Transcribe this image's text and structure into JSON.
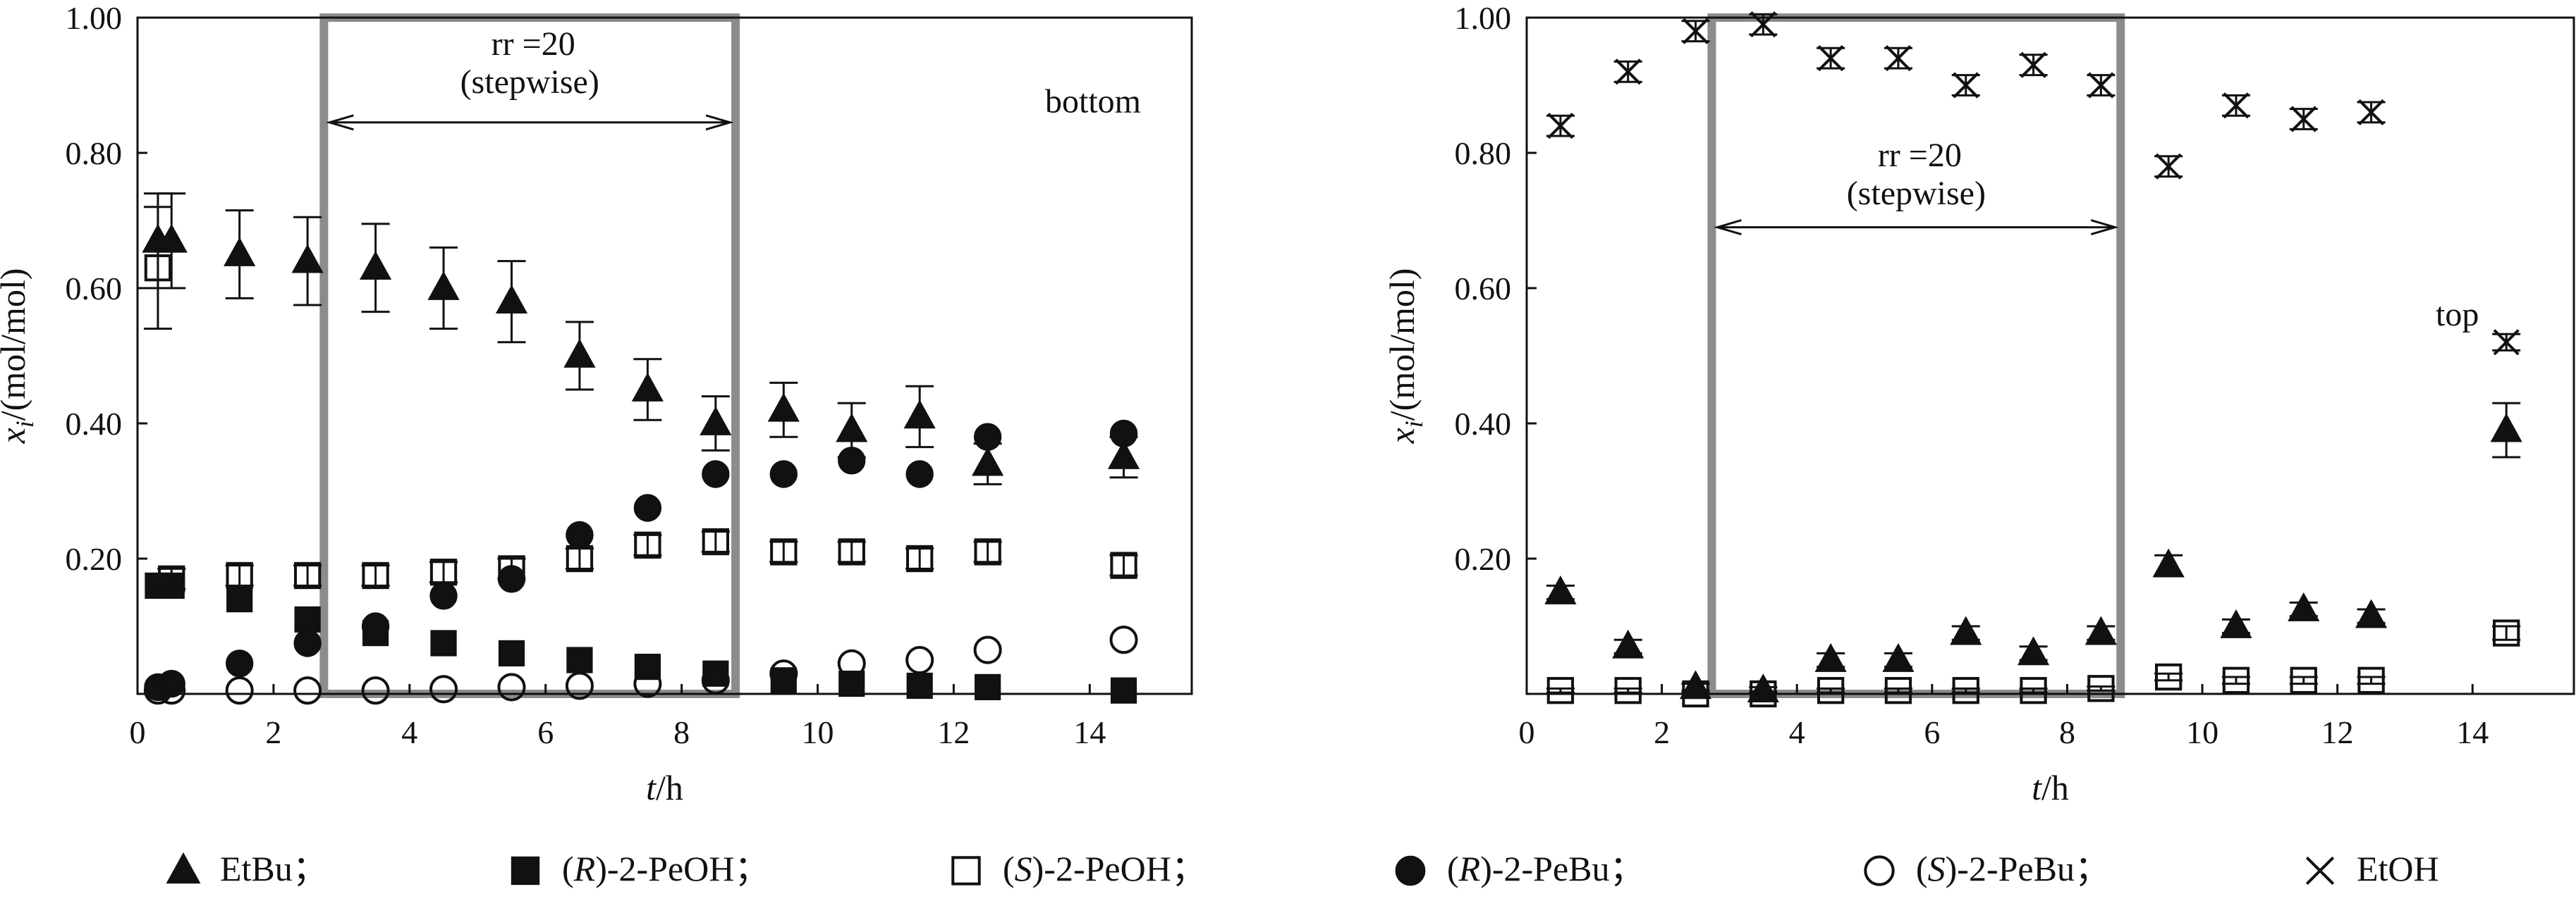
{
  "chart_data": [
    {
      "type": "scatter",
      "panel": "left",
      "xlabel_italic": "t",
      "xlabel_unit": "/h",
      "ylabel_sub_base": "x",
      "ylabel_sub_index": "i",
      "ylabel_unit": "/(mol/mol)",
      "xlim": [
        0,
        15.5
      ],
      "ylim": [
        0,
        1.0
      ],
      "xticks": [
        0,
        2,
        4,
        6,
        8,
        10,
        12,
        14
      ],
      "xtick_labels": [
        "0",
        "2",
        "4",
        "6",
        "8",
        "10",
        "12",
        "14"
      ],
      "yticks": [
        0.2,
        0.4,
        0.6,
        0.8,
        1.0
      ],
      "ytick_labels": [
        "0.20",
        "0.40",
        "0.60",
        "0.80",
        "1.00"
      ],
      "stepwise_region": [
        3,
        9
      ],
      "annotation_line1": "rr =20",
      "annotation_line2": "(stepwise)",
      "corner_label": "bottom",
      "series": [
        {
          "name": "EtBu",
          "marker": "triangle-filled",
          "x": [
            0.3,
            0.5,
            1.5,
            2.5,
            3.5,
            4.5,
            5.5,
            6.5,
            7.5,
            8.5,
            9.5,
            10.5,
            11.5,
            12.5,
            14.5
          ],
          "y": [
            0.67,
            0.67,
            0.65,
            0.64,
            0.63,
            0.6,
            0.58,
            0.5,
            0.45,
            0.4,
            0.42,
            0.39,
            0.41,
            0.34,
            0.35
          ],
          "err": [
            0.07,
            0.07,
            0.065,
            0.065,
            0.065,
            0.06,
            0.06,
            0.05,
            0.045,
            0.04,
            0.04,
            0.04,
            0.045,
            0.03,
            0.03
          ]
        },
        {
          "name": "(R)-2-PeOH",
          "marker": "square-filled",
          "x": [
            0.3,
            0.5,
            1.5,
            2.5,
            3.5,
            4.5,
            5.5,
            6.5,
            7.5,
            8.5,
            9.5,
            10.5,
            11.5,
            12.5,
            14.5
          ],
          "y": [
            0.16,
            0.16,
            0.14,
            0.11,
            0.09,
            0.075,
            0.06,
            0.05,
            0.04,
            0.03,
            0.02,
            0.015,
            0.012,
            0.01,
            0.005
          ],
          "err": []
        },
        {
          "name": "(S)-2-PeOH",
          "marker": "square-open",
          "x": [
            0.3,
            0.5,
            1.5,
            2.5,
            3.5,
            4.5,
            5.5,
            6.5,
            7.5,
            8.5,
            9.5,
            10.5,
            11.5,
            12.5,
            14.5
          ],
          "y": [
            0.63,
            0.17,
            0.175,
            0.175,
            0.175,
            0.18,
            0.185,
            0.2,
            0.22,
            0.225,
            0.21,
            0.21,
            0.2,
            0.21,
            0.19
          ],
          "err": [
            0.09,
            0.015,
            0.015,
            0.015,
            0.015,
            0.015,
            0.015,
            0.015,
            0.015,
            0.015,
            0.015,
            0.015,
            0.015,
            0.015,
            0.015
          ]
        },
        {
          "name": "(R)-2-PeBu",
          "marker": "circle-filled",
          "x": [
            0.3,
            0.5,
            1.5,
            2.5,
            3.5,
            4.5,
            5.5,
            6.5,
            7.5,
            8.5,
            9.5,
            10.5,
            11.5,
            12.5,
            14.5
          ],
          "y": [
            0.01,
            0.015,
            0.045,
            0.075,
            0.1,
            0.145,
            0.17,
            0.235,
            0.275,
            0.325,
            0.325,
            0.345,
            0.325,
            0.38,
            0.385
          ],
          "err": []
        },
        {
          "name": "(S)-2-PeBu",
          "marker": "circle-open",
          "x": [
            0.3,
            0.5,
            1.5,
            2.5,
            3.5,
            4.5,
            5.5,
            6.5,
            7.5,
            8.5,
            9.5,
            10.5,
            11.5,
            12.5,
            14.5
          ],
          "y": [
            0.005,
            0.005,
            0.005,
            0.005,
            0.005,
            0.007,
            0.01,
            0.012,
            0.015,
            0.02,
            0.03,
            0.045,
            0.05,
            0.065,
            0.08
          ],
          "err": []
        }
      ]
    },
    {
      "type": "scatter",
      "panel": "right",
      "xlabel_italic": "t",
      "xlabel_unit": "/h",
      "ylabel_sub_base": "x",
      "ylabel_sub_index": "i",
      "ylabel_unit": "/(mol/mol)",
      "xlim": [
        0,
        15.5
      ],
      "ylim": [
        0,
        1.0
      ],
      "xticks": [
        0,
        2,
        4,
        6,
        8,
        10,
        12,
        14
      ],
      "xtick_labels": [
        "0",
        "2",
        "4",
        "6",
        "8",
        "10",
        "12",
        "14"
      ],
      "yticks": [
        0.2,
        0.4,
        0.6,
        0.8,
        1.0
      ],
      "ytick_labels": [
        "0.20",
        "0.40",
        "0.60",
        "0.80",
        "1.00"
      ],
      "stepwise_region": [
        3,
        9
      ],
      "annotation_line1": "rr =20",
      "annotation_line2": "(stepwise)",
      "corner_label": "top",
      "series": [
        {
          "name": "EtOH",
          "marker": "star",
          "x": [
            0.5,
            1.5,
            2.5,
            3.5,
            4.5,
            5.5,
            6.5,
            7.5,
            8.5,
            9.5,
            10.5,
            11.5,
            12.5,
            14.5
          ],
          "y": [
            0.84,
            0.92,
            0.98,
            0.99,
            0.94,
            0.94,
            0.9,
            0.93,
            0.9,
            0.78,
            0.87,
            0.85,
            0.86,
            0.52
          ],
          "err": [
            0.015,
            0.015,
            0.015,
            0.015,
            0.015,
            0.015,
            0.015,
            0.015,
            0.015,
            0.015,
            0.015,
            0.015,
            0.015,
            0.012
          ]
        },
        {
          "name": "EtBu",
          "marker": "triangle-filled",
          "x": [
            0.5,
            1.5,
            2.5,
            3.5,
            4.5,
            5.5,
            6.5,
            7.5,
            8.5,
            9.5,
            10.5,
            11.5,
            12.5,
            14.5
          ],
          "y": [
            0.15,
            0.07,
            0.01,
            0.005,
            0.05,
            0.05,
            0.09,
            0.06,
            0.09,
            0.19,
            0.1,
            0.125,
            0.115,
            0.39
          ],
          "err": [
            0.01,
            0.01,
            0.005,
            0.005,
            0.01,
            0.01,
            0.01,
            0.01,
            0.01,
            0.015,
            0.01,
            0.01,
            0.01,
            0.04
          ]
        },
        {
          "name": "(S)-2-PeOH",
          "marker": "square-open",
          "x": [
            0.5,
            1.5,
            2.5,
            3.5,
            4.5,
            5.5,
            6.5,
            7.5,
            8.5,
            9.5,
            10.5,
            11.5,
            12.5,
            14.5
          ],
          "y": [
            0.005,
            0.005,
            0.0,
            0.0,
            0.005,
            0.005,
            0.005,
            0.005,
            0.008,
            0.025,
            0.02,
            0.02,
            0.02,
            0.09
          ],
          "err": [
            0.003,
            0.003,
            0.003,
            0.003,
            0.003,
            0.003,
            0.003,
            0.003,
            0.003,
            0.005,
            0.005,
            0.005,
            0.005,
            0.01
          ]
        }
      ]
    }
  ],
  "legend": [
    {
      "marker": "triangle-filled",
      "text": "EtBu；"
    },
    {
      "marker": "square-filled",
      "pre": "(",
      "italic": "R",
      "post": ")-2-PeOH；"
    },
    {
      "marker": "square-open",
      "pre": "(",
      "italic": "S",
      "post": ")-2-PeOH；"
    },
    {
      "marker": "circle-filled",
      "pre": "(",
      "italic": "R",
      "post": ")-2-PeBu；"
    },
    {
      "marker": "circle-open",
      "pre": "(",
      "italic": "S",
      "post": ")-2-PeBu；"
    },
    {
      "marker": "star",
      "text": "EtOH"
    }
  ]
}
